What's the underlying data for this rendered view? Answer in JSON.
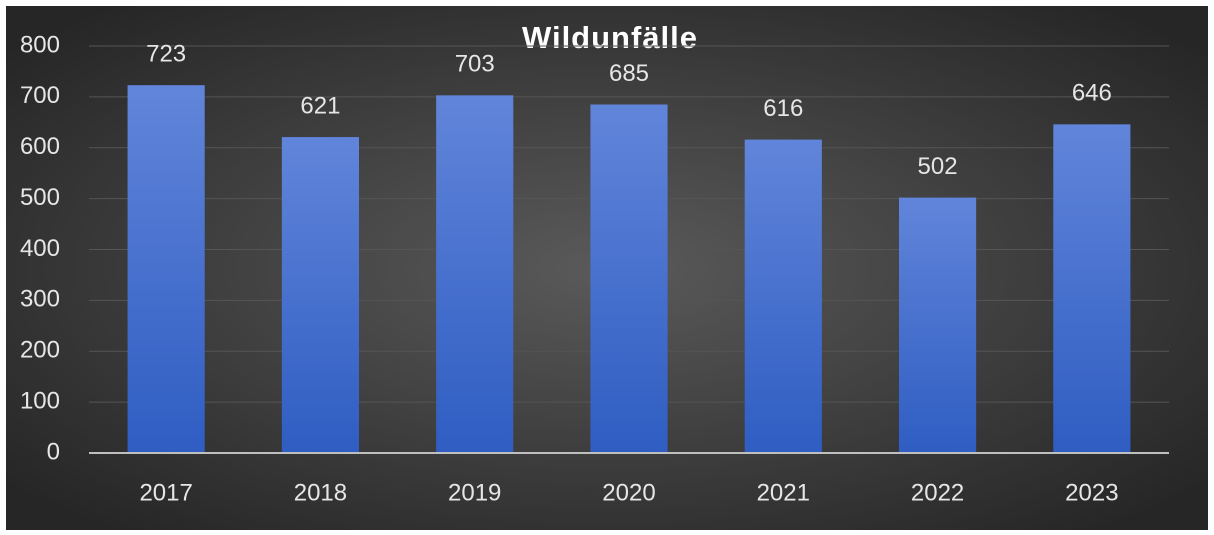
{
  "chart_data": {
    "type": "bar",
    "title": "Wildunfälle",
    "categories": [
      "2017",
      "2018",
      "2019",
      "2020",
      "2021",
      "2022",
      "2023"
    ],
    "values": [
      723,
      621,
      703,
      685,
      616,
      502,
      646
    ],
    "color": "#4a72d0",
    "ylim": [
      0,
      800
    ],
    "yticks": [
      0,
      100,
      200,
      300,
      400,
      500,
      600,
      700,
      800
    ],
    "grid": true
  }
}
